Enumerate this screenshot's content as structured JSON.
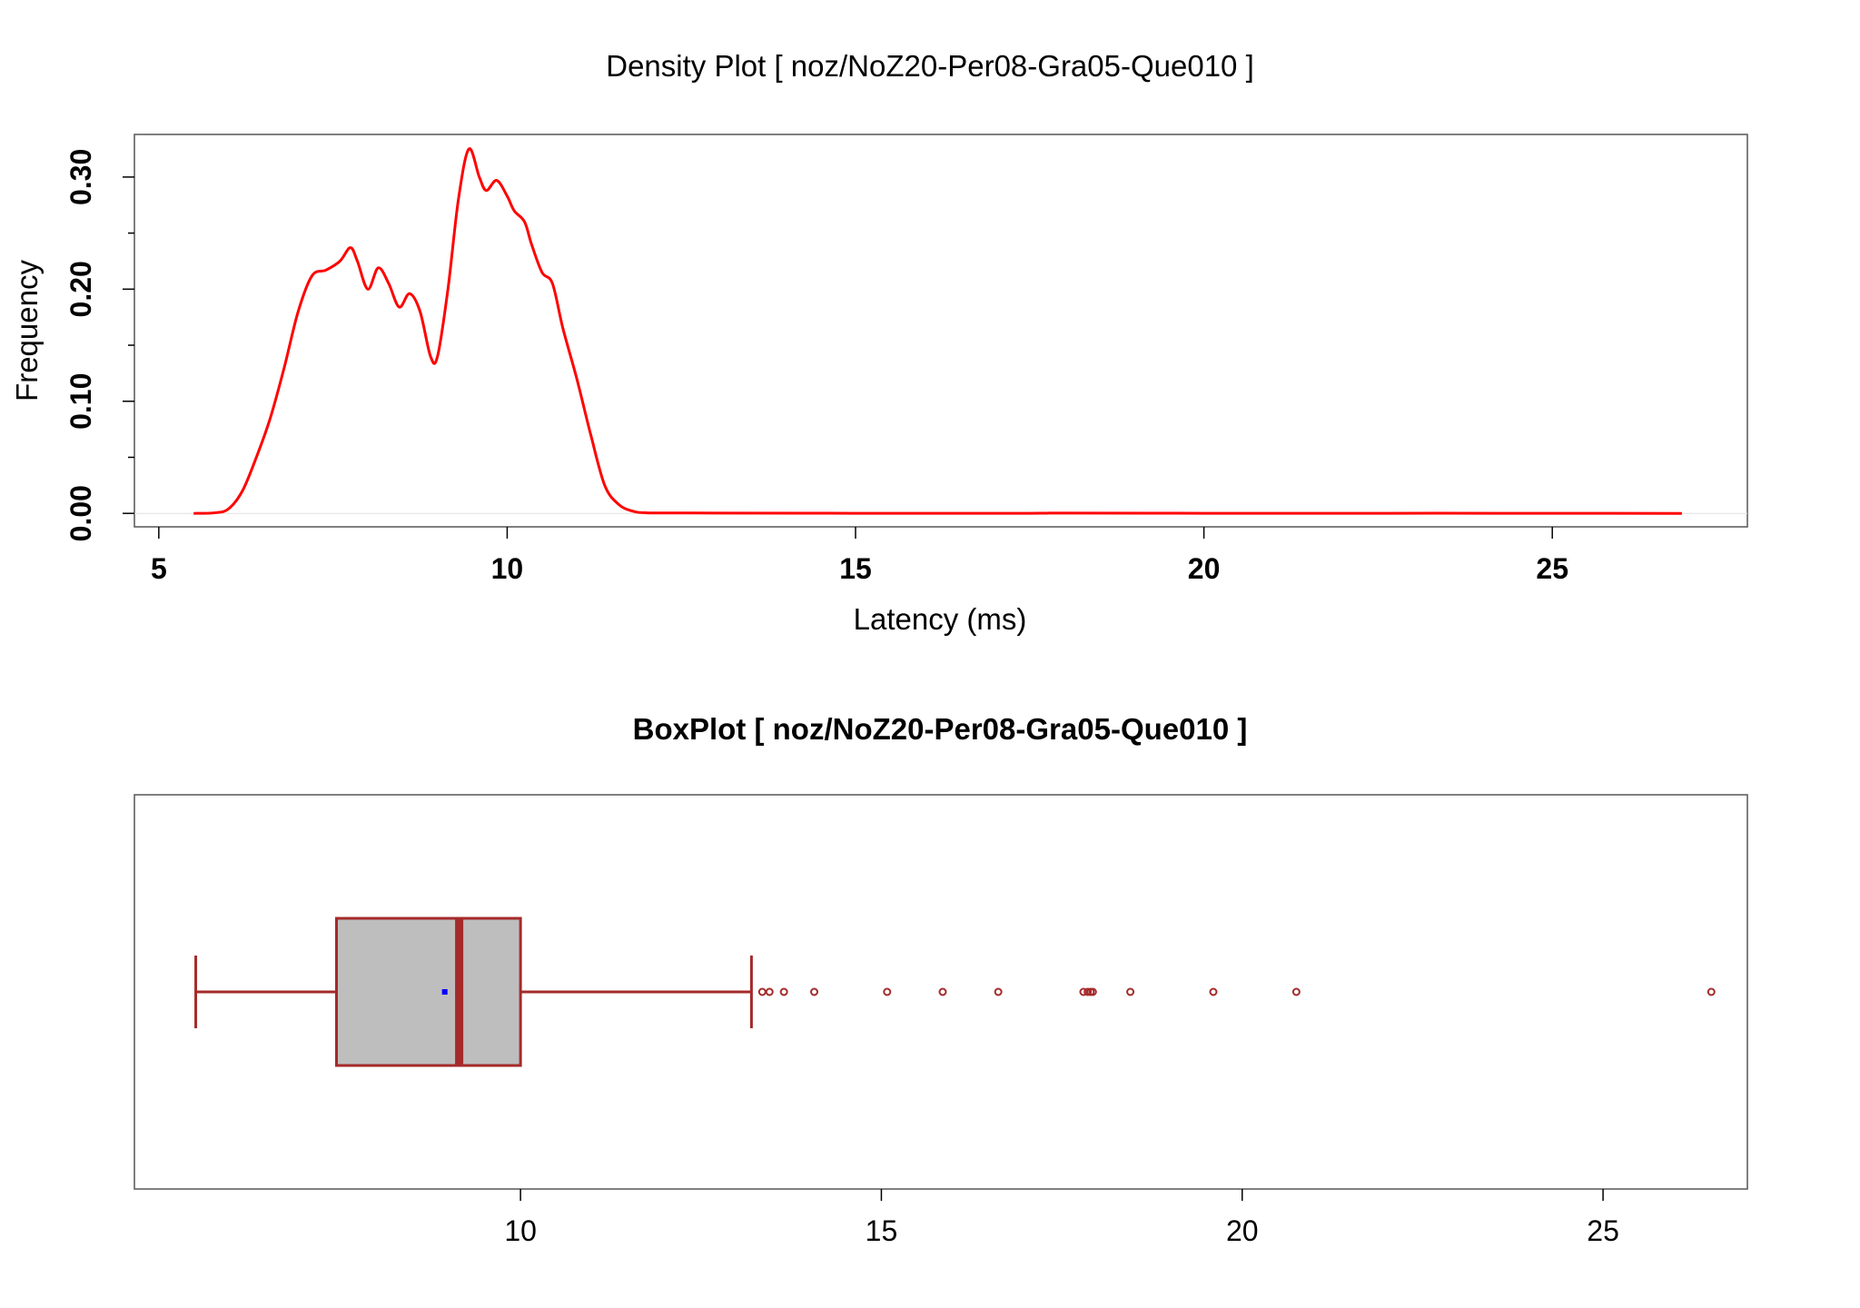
{
  "figure": {
    "density_title": "Density Plot [ noz/NoZ20-Per08-Gra05-Que010 ]",
    "boxplot_title": "BoxPlot [ noz/NoZ20-Per08-Gra05-Que010 ]"
  },
  "colors": {
    "density_line": "#ff0000",
    "box_border": "#a52a2a",
    "box_fill": "#bebebe",
    "mean_marker": "#0000ff",
    "frame": "#555555"
  },
  "chart_data": [
    {
      "type": "line",
      "name": "density",
      "title": "Density Plot [ noz/NoZ20-Per08-Gra05-Que010 ]",
      "xlabel": "Latency (ms)",
      "ylabel": "Frequency",
      "xlim": [
        4.65,
        27.8
      ],
      "ylim": [
        -0.012,
        0.338
      ],
      "x_ticks": [
        5,
        10,
        15,
        20,
        25
      ],
      "x_tick_labels": [
        "5",
        "10",
        "15",
        "20",
        "25"
      ],
      "y_ticks": [
        0.0,
        0.1,
        0.2,
        0.3
      ],
      "y_tick_labels": [
        "0.00",
        "0.10",
        "0.20",
        "0.30"
      ],
      "y_minor_ticks": [
        0.05,
        0.15,
        0.25
      ],
      "grid": false,
      "series": [
        {
          "x": [
            5.5,
            5.8,
            6.0,
            6.2,
            6.4,
            6.6,
            6.8,
            7.0,
            7.2,
            7.4,
            7.6,
            7.75,
            7.85,
            8.0,
            8.15,
            8.3,
            8.45,
            8.6,
            8.75,
            8.9,
            9.0,
            9.15,
            9.3,
            9.45,
            9.6,
            9.7,
            9.85,
            10.0,
            10.1,
            10.25,
            10.35,
            10.5,
            10.65,
            10.8,
            11.0,
            11.2,
            11.4,
            11.6,
            11.8,
            12.0,
            12.5,
            13.0,
            15.0,
            17.5,
            18.0,
            20.0,
            22.5,
            25.0,
            26.86
          ],
          "y": [
            0.0,
            0.0005,
            0.004,
            0.02,
            0.05,
            0.085,
            0.13,
            0.18,
            0.212,
            0.217,
            0.225,
            0.237,
            0.225,
            0.2,
            0.219,
            0.205,
            0.184,
            0.196,
            0.18,
            0.14,
            0.14,
            0.2,
            0.28,
            0.325,
            0.3,
            0.288,
            0.297,
            0.283,
            0.27,
            0.26,
            0.24,
            0.215,
            0.205,
            0.165,
            0.12,
            0.07,
            0.025,
            0.008,
            0.002,
            0.0005,
            0.0004,
            0.0003,
            0.0001,
            0.0001,
            0.0003,
            0.0001,
            0.0001,
            0.0001,
            0.0
          ]
        }
      ]
    },
    {
      "type": "boxplot",
      "name": "latency-boxplot",
      "title": "BoxPlot [ noz/NoZ20-Per08-Gra05-Que010 ]",
      "xlim": [
        4.65,
        27.0
      ],
      "x_ticks": [
        10,
        15,
        20,
        25
      ],
      "x_tick_labels": [
        "10",
        "15",
        "20",
        "25"
      ],
      "orientation": "horizontal",
      "whisker_low": 5.5,
      "q1": 7.45,
      "median": 9.15,
      "q3": 10.0,
      "whisker_high": 13.2,
      "mean": 8.95,
      "outliers": [
        13.35,
        13.45,
        13.65,
        14.07,
        15.08,
        15.85,
        16.62,
        17.8,
        17.86,
        17.9,
        17.93,
        18.45,
        19.6,
        20.75,
        26.5
      ]
    }
  ]
}
